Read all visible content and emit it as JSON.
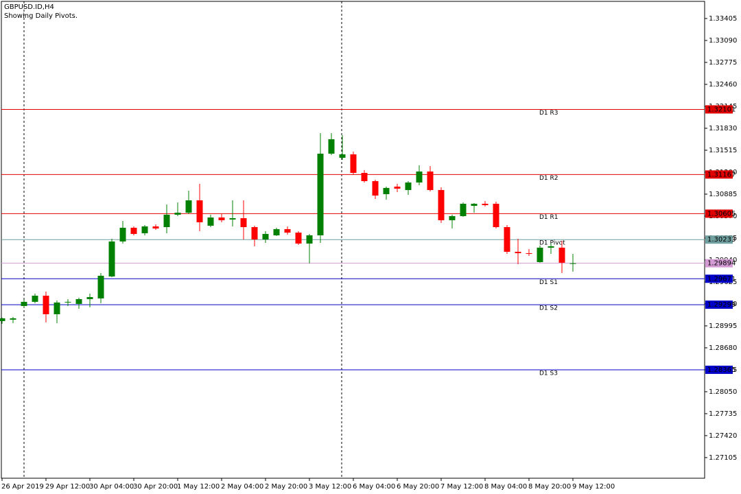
{
  "chart_data": {
    "type": "candlestick",
    "title": "GBPUSD.ID,H4",
    "subtitle": "Showing Daily Pivots.",
    "up_color": "#008000",
    "down_color": "#ff0000",
    "categories": [
      "26 Apr 2019",
      null,
      null,
      null,
      "29 Apr 12:00",
      null,
      null,
      null,
      "30 Apr 04:00",
      null,
      null,
      null,
      "30 Apr 20:00",
      null,
      null,
      null,
      "1 May 12:00",
      null,
      null,
      null,
      "2 May 04:00",
      null,
      null,
      null,
      "2 May 20:00",
      null,
      null,
      null,
      "3 May 12:00",
      null,
      null,
      null,
      "6 May 04:00",
      null,
      null,
      null,
      "6 May 20:00",
      null,
      null,
      null,
      "7 May 12:00",
      null,
      null,
      null,
      "8 May 04:00",
      null,
      null,
      null,
      "8 May 20:00",
      null,
      null,
      null,
      "9 May 12:00"
    ],
    "open": [
      1.29064,
      1.29084,
      1.2928,
      1.2934,
      1.29428,
      1.29162,
      1.2933,
      1.2931,
      1.29379,
      1.29389,
      1.29704,
      1.30206,
      1.30403,
      1.30324,
      1.30422,
      1.30412,
      1.3059,
      1.30619,
      1.30796,
      1.30432,
      1.3055,
      1.30521,
      1.3054,
      1.30412,
      1.30235,
      1.30294,
      1.30383,
      1.30333,
      1.30176,
      1.30294,
      1.31466,
      1.31407,
      1.31456,
      1.3119,
      1.31072,
      1.30885,
      1.30993,
      1.30944,
      1.31052,
      1.3121,
      1.30944,
      1.30511,
      1.3057,
      1.30717,
      1.30747,
      1.30747,
      1.30412,
      1.30058,
      1.30038,
      1.2991,
      1.30117,
      1.30117,
      1.29891
    ],
    "close": [
      1.29103,
      1.29103,
      1.2934,
      1.29428,
      1.29162,
      1.2933,
      1.2934,
      1.29379,
      1.29408,
      1.29714,
      1.30206,
      1.30403,
      1.30314,
      1.30422,
      1.30392,
      1.3059,
      1.30619,
      1.30796,
      1.30481,
      1.3055,
      1.30511,
      1.3054,
      1.30412,
      1.30235,
      1.30314,
      1.30383,
      1.30333,
      1.30176,
      1.30294,
      1.31466,
      1.31673,
      1.31456,
      1.3119,
      1.31072,
      1.30865,
      1.30974,
      1.30964,
      1.31052,
      1.3121,
      1.30944,
      1.30511,
      1.3057,
      1.30747,
      1.30747,
      1.30727,
      1.30412,
      1.30058,
      1.30038,
      1.30028,
      1.30117,
      1.30137,
      1.29901,
      1.29894
    ],
    "high": [
      1.29113,
      1.29123,
      1.29369,
      1.29458,
      1.29487,
      1.29359,
      1.29379,
      1.29399,
      1.29458,
      1.29753,
      1.30245,
      1.30501,
      1.30422,
      1.30442,
      1.30452,
      1.30737,
      1.30767,
      1.30934,
      1.31033,
      1.3059,
      1.30599,
      1.30796,
      1.30796,
      1.30432,
      1.30353,
      1.30403,
      1.30422,
      1.30353,
      1.30314,
      1.31761,
      1.31761,
      1.31731,
      1.31495,
      1.3123,
      1.31092,
      1.30993,
      1.31033,
      1.31072,
      1.31298,
      1.31288,
      1.30983,
      1.3059,
      1.30767,
      1.30757,
      1.30786,
      1.30776,
      1.30442,
      1.30245,
      1.30097,
      1.30147,
      1.30176,
      1.30216,
      1.30028
    ],
    "low": [
      1.29025,
      1.29034,
      1.29261,
      1.2932,
      1.29044,
      1.29034,
      1.2928,
      1.29241,
      1.29261,
      1.2932,
      1.29694,
      1.30176,
      1.30294,
      1.30294,
      1.30373,
      1.30324,
      1.3057,
      1.306,
      1.30353,
      1.30412,
      1.30481,
      1.30422,
      1.30235,
      1.30137,
      1.30186,
      1.30284,
      1.30304,
      1.30156,
      1.29891,
      1.30186,
      1.31446,
      1.31377,
      1.3117,
      1.31052,
      1.30816,
      1.30806,
      1.30914,
      1.30875,
      1.31013,
      1.30924,
      1.30471,
      1.30393,
      1.3056,
      1.30619,
      1.30708,
      1.30393,
      1.30028,
      1.29881,
      1.29999,
      1.29901,
      1.30028,
      1.29753,
      1.29773
    ],
    "ylim": [
      1.26809,
      1.33651
    ],
    "yticks": [
      1.33405,
      {
        "value": 1.3309,
        "label": "1.33090"
      },
      1.32775,
      {
        "value": 1.3246,
        "label": "1.32460"
      },
      1.32145,
      {
        "value": 1.3183,
        "label": "1.31830"
      },
      1.31515,
      {
        "value": 1.312,
        "label": "1.31200"
      },
      1.30885,
      {
        "value": 1.3057,
        "label": "1.30570"
      },
      1.30255,
      {
        "value": 1.2994,
        "label": "1.29940"
      },
      1.29625,
      {
        "value": 1.2931,
        "label": "1.29310"
      },
      1.28995,
      {
        "value": 1.2868,
        "label": "1.28680"
      },
      1.28365,
      {
        "value": 1.2805,
        "label": "1.28050"
      },
      1.27735,
      {
        "value": 1.2742,
        "label": "1.27420"
      },
      1.27105
    ],
    "levels": [
      {
        "name": "D1 R3",
        "value": 1.32101,
        "color": "#e00000"
      },
      {
        "name": "D1 R2",
        "value": 1.31167,
        "color": "#e00000"
      },
      {
        "name": "D1 R1",
        "value": 1.30605,
        "color": "#e00000"
      },
      {
        "name": "D1 Pivot",
        "value": 1.30233,
        "color": "#6f9f9f"
      },
      {
        "name": "D1 S1",
        "value": 1.29671,
        "color": "#0000c8"
      },
      {
        "name": "D1 S2",
        "value": 1.29299,
        "color": "#0000c8"
      },
      {
        "name": "D1 S3",
        "value": 1.28365,
        "color": "#0000c8"
      }
    ],
    "last_price": 1.29894,
    "last_price_color": "#d49ad4"
  }
}
